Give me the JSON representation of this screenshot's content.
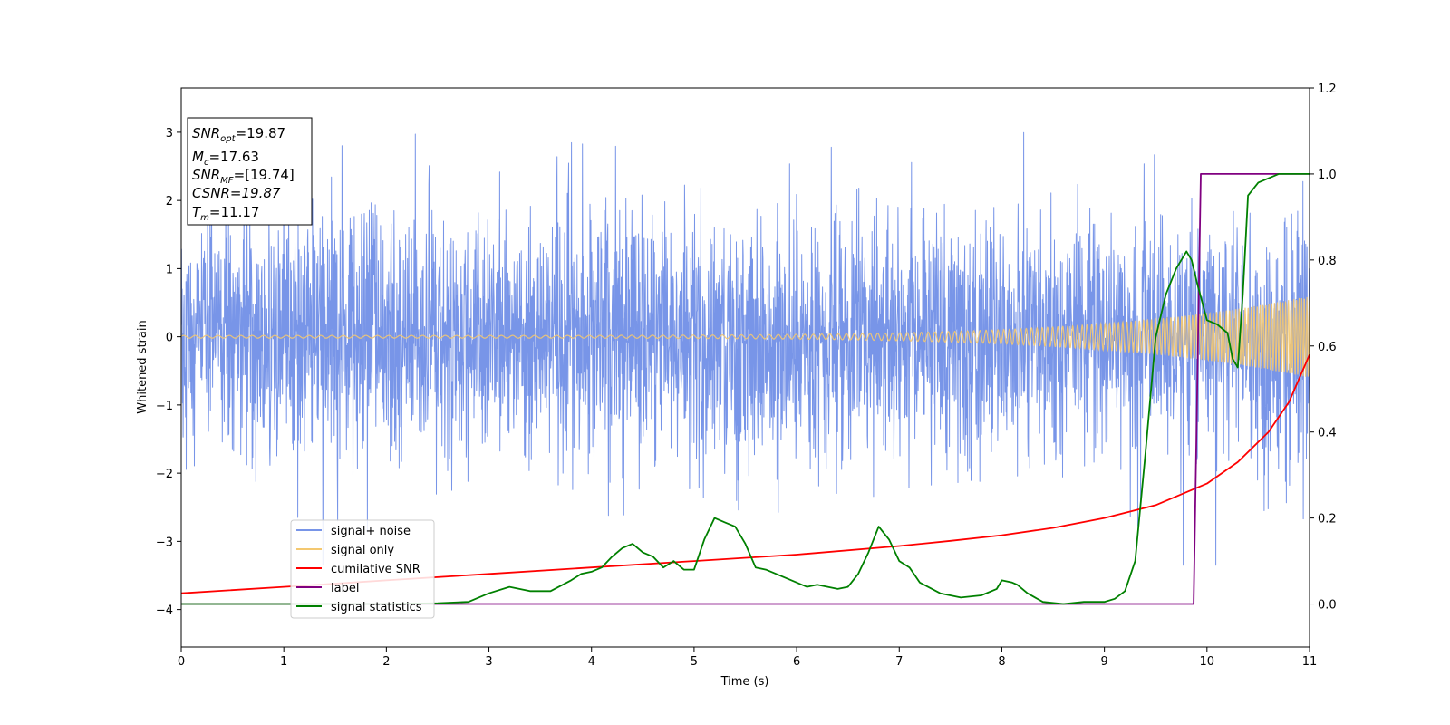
{
  "chart_data": {
    "type": "line",
    "xlabel": "Time (s)",
    "ylabel_left": "Whitened strain",
    "ylabel_right": "",
    "xlim": [
      0,
      11
    ],
    "ylim_left": [
      -4.55,
      3.65
    ],
    "ylim_right": [
      -0.1,
      1.2
    ],
    "x_ticks": [
      0,
      1,
      2,
      3,
      4,
      5,
      6,
      7,
      8,
      9,
      10,
      11
    ],
    "y_ticks_left": [
      -4,
      -3,
      -2,
      -1,
      0,
      1,
      2,
      3
    ],
    "y_ticks_right": [
      0.0,
      0.2,
      0.4,
      0.6,
      0.8,
      1.0,
      1.2
    ],
    "grid": false,
    "legend_position": "lower-left",
    "annotation": {
      "snr_opt": "=19.87",
      "mc": "=17.63",
      "snr_mf": "=[19.74]",
      "csnr": "CSNR=19.87",
      "tm": "=11.17"
    },
    "colors": {
      "noise": "#7895e8",
      "signal": "#f4c870",
      "csnr": "#ff0000",
      "label": "#800080",
      "stats": "#008000"
    },
    "series": [
      {
        "name": "signal+ noise",
        "axis": "left",
        "kind": "noise",
        "sigma": 0.9,
        "spike_max": 3.3,
        "spike_min": -3.35
      },
      {
        "name": "signal only",
        "axis": "left",
        "kind": "chirp",
        "amplitude_start": 0.02,
        "amplitude_end": 0.6,
        "freq_start_hz": 9,
        "freq_end_hz": 40
      },
      {
        "name": "cumilative SNR",
        "axis": "right",
        "x": [
          0,
          1,
          2,
          3,
          4,
          5,
          6,
          7,
          7.5,
          8,
          8.5,
          9,
          9.5,
          9.8,
          10,
          10.3,
          10.6,
          10.8,
          11
        ],
        "y": [
          0.025,
          0.04,
          0.055,
          0.07,
          0.085,
          0.1,
          0.115,
          0.135,
          0.147,
          0.16,
          0.177,
          0.2,
          0.23,
          0.26,
          0.28,
          0.33,
          0.4,
          0.47,
          0.58
        ]
      },
      {
        "name": "label",
        "axis": "right",
        "x": [
          0,
          9.87,
          9.94,
          11
        ],
        "y": [
          0,
          0,
          1,
          1
        ]
      },
      {
        "name": "signal statistics",
        "axis": "right",
        "x": [
          0,
          1,
          2,
          2.5,
          2.8,
          3.0,
          3.2,
          3.4,
          3.6,
          3.8,
          3.9,
          4.0,
          4.1,
          4.2,
          4.3,
          4.4,
          4.5,
          4.6,
          4.7,
          4.8,
          4.9,
          5.0,
          5.1,
          5.2,
          5.3,
          5.4,
          5.5,
          5.6,
          5.7,
          5.8,
          5.9,
          6.0,
          6.1,
          6.2,
          6.4,
          6.5,
          6.6,
          6.7,
          6.8,
          6.9,
          7.0,
          7.1,
          7.2,
          7.4,
          7.6,
          7.8,
          7.95,
          8.0,
          8.1,
          8.15,
          8.25,
          8.4,
          8.6,
          8.8,
          9.0,
          9.1,
          9.2,
          9.3,
          9.4,
          9.5,
          9.6,
          9.7,
          9.8,
          9.85,
          9.9,
          10.0,
          10.1,
          10.2,
          10.25,
          10.3,
          10.35,
          10.4,
          10.5,
          10.6,
          10.7,
          10.8,
          11
        ],
        "y": [
          0,
          0,
          0,
          0.002,
          0.005,
          0.025,
          0.04,
          0.03,
          0.03,
          0.055,
          0.07,
          0.075,
          0.085,
          0.11,
          0.13,
          0.14,
          0.12,
          0.11,
          0.085,
          0.1,
          0.08,
          0.08,
          0.15,
          0.2,
          0.19,
          0.18,
          0.14,
          0.085,
          0.08,
          0.07,
          0.06,
          0.05,
          0.04,
          0.045,
          0.035,
          0.04,
          0.07,
          0.12,
          0.18,
          0.15,
          0.1,
          0.085,
          0.05,
          0.025,
          0.015,
          0.02,
          0.035,
          0.055,
          0.05,
          0.045,
          0.025,
          0.005,
          0,
          0.005,
          0.005,
          0.012,
          0.03,
          0.1,
          0.35,
          0.62,
          0.72,
          0.78,
          0.82,
          0.8,
          0.75,
          0.66,
          0.65,
          0.63,
          0.57,
          0.55,
          0.72,
          0.95,
          0.98,
          0.99,
          1.0,
          1.0,
          1.0
        ]
      }
    ]
  }
}
